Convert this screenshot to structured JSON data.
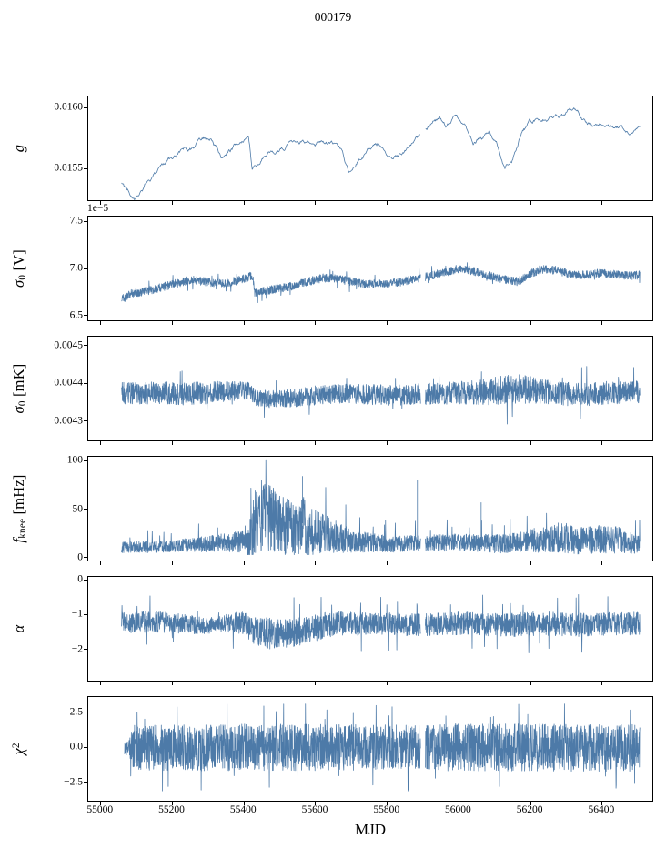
{
  "title": "000179",
  "xlabel": "MJD",
  "chart_data": {
    "type": "line",
    "color": "#4d7aa8",
    "background": "#ffffff",
    "xlim": [
      54965,
      56540
    ],
    "x_start": 55058,
    "x_end": 56505,
    "xticks": [
      55000,
      55200,
      55400,
      55600,
      55800,
      56000,
      56200,
      56400
    ],
    "xtick_labels": [
      "55000",
      "55200",
      "55400",
      "55600",
      "55800",
      "56000",
      "56200",
      "56400"
    ],
    "gaps": [
      [
        55893,
        55906
      ]
    ],
    "panels": [
      {
        "id": "g",
        "ylabel_parts": [
          {
            "t": "g",
            "i": 1
          }
        ],
        "ylim": [
          0.01524,
          0.01609
        ],
        "yticks": [
          {
            "v": 0.0155,
            "label": "0.0155"
          },
          {
            "v": 0.016,
            "label": "0.0160"
          }
        ],
        "style": "walk",
        "seed": 1,
        "n": 850,
        "base": [
          [
            55058,
            0.01538
          ],
          [
            55072,
            0.01531
          ],
          [
            55095,
            0.01527
          ],
          [
            55130,
            0.01541
          ],
          [
            55170,
            0.01549
          ],
          [
            55210,
            0.01556
          ],
          [
            55250,
            0.01563
          ],
          [
            55285,
            0.01571
          ],
          [
            55310,
            0.01572
          ],
          [
            55340,
            0.01559
          ],
          [
            55360,
            0.01564
          ],
          [
            55390,
            0.01571
          ],
          [
            55413,
            0.01573
          ],
          [
            55423,
            0.01549
          ],
          [
            55450,
            0.01557
          ],
          [
            55480,
            0.0156
          ],
          [
            55520,
            0.01568
          ],
          [
            55560,
            0.01574
          ],
          [
            55600,
            0.01573
          ],
          [
            55640,
            0.01575
          ],
          [
            55672,
            0.01569
          ],
          [
            55692,
            0.01551
          ],
          [
            55715,
            0.0156
          ],
          [
            55745,
            0.01568
          ],
          [
            55775,
            0.0157
          ],
          [
            55810,
            0.01564
          ],
          [
            55845,
            0.01569
          ],
          [
            55880,
            0.01573
          ],
          [
            55915,
            0.01582
          ],
          [
            55945,
            0.0159
          ],
          [
            55965,
            0.01584
          ],
          [
            55990,
            0.01589
          ],
          [
            56015,
            0.01581
          ],
          [
            56040,
            0.01571
          ],
          [
            56065,
            0.01577
          ],
          [
            56085,
            0.01584
          ],
          [
            56105,
            0.01573
          ],
          [
            56128,
            0.01556
          ],
          [
            56148,
            0.01561
          ],
          [
            56175,
            0.01585
          ],
          [
            56205,
            0.01589
          ],
          [
            56240,
            0.01592
          ],
          [
            56270,
            0.01596
          ],
          [
            56300,
            0.01601
          ],
          [
            56330,
            0.01599
          ],
          [
            56355,
            0.01591
          ],
          [
            56385,
            0.01585
          ],
          [
            56420,
            0.01583
          ],
          [
            56460,
            0.01582
          ],
          [
            56505,
            0.01583
          ]
        ],
        "amp": [
          [
            55058,
            1.3e-05
          ],
          [
            56505,
            1.3e-05
          ]
        ]
      },
      {
        "id": "sigma0-v",
        "ylabel_parts": [
          {
            "t": "σ",
            "i": 1
          },
          {
            "t": "0",
            "sub": 1
          },
          {
            "t": " [V]"
          }
        ],
        "offset_text": "1e−5",
        "ylim": [
          6.45,
          7.55
        ],
        "yticks": [
          {
            "v": 6.5,
            "label": "6.5"
          },
          {
            "v": 7.0,
            "label": "7.0"
          },
          {
            "v": 7.5,
            "label": "7.5"
          }
        ],
        "style": "band",
        "seed": 2,
        "n": 2300,
        "base": [
          [
            55058,
            6.67
          ],
          [
            55085,
            6.73
          ],
          [
            55140,
            6.77
          ],
          [
            55200,
            6.83
          ],
          [
            55250,
            6.88
          ],
          [
            55290,
            6.86
          ],
          [
            55330,
            6.84
          ],
          [
            55370,
            6.86
          ],
          [
            55410,
            6.9
          ],
          [
            55424,
            6.93
          ],
          [
            55430,
            6.74
          ],
          [
            55470,
            6.77
          ],
          [
            55520,
            6.8
          ],
          [
            55570,
            6.85
          ],
          [
            55620,
            6.9
          ],
          [
            55660,
            6.89
          ],
          [
            55700,
            6.86
          ],
          [
            55740,
            6.83
          ],
          [
            55790,
            6.84
          ],
          [
            55840,
            6.86
          ],
          [
            55890,
            6.89
          ],
          [
            55940,
            6.94
          ],
          [
            55990,
            6.99
          ],
          [
            56030,
            6.98
          ],
          [
            56070,
            6.94
          ],
          [
            56110,
            6.9
          ],
          [
            56140,
            6.87
          ],
          [
            56165,
            6.86
          ],
          [
            56195,
            6.94
          ],
          [
            56230,
            6.99
          ],
          [
            56270,
            6.98
          ],
          [
            56310,
            6.94
          ],
          [
            56350,
            6.93
          ],
          [
            56390,
            6.95
          ],
          [
            56430,
            6.94
          ],
          [
            56470,
            6.92
          ],
          [
            56505,
            6.93
          ]
        ],
        "amp": [
          [
            55058,
            0.045
          ],
          [
            56505,
            0.045
          ]
        ],
        "spikes": {
          "prob": 0.012,
          "mult": 1.9,
          "dir": "both"
        }
      },
      {
        "id": "sigma0-mk",
        "ylabel_parts": [
          {
            "t": "σ",
            "i": 1
          },
          {
            "t": "0",
            "sub": 1
          },
          {
            "t": " [mK]"
          }
        ],
        "ylim": [
          0.004249,
          0.004523
        ],
        "yticks": [
          {
            "v": 0.0043,
            "label": "0.0043"
          },
          {
            "v": 0.0044,
            "label": "0.0044"
          },
          {
            "v": 0.0045,
            "label": "0.0045"
          }
        ],
        "style": "band",
        "seed": 3,
        "n": 2400,
        "base": [
          [
            55058,
            0.004372
          ],
          [
            55150,
            0.004376
          ],
          [
            55240,
            0.004372
          ],
          [
            55330,
            0.004377
          ],
          [
            55415,
            0.004381
          ],
          [
            55435,
            0.004361
          ],
          [
            55490,
            0.004357
          ],
          [
            55550,
            0.004363
          ],
          [
            55610,
            0.004369
          ],
          [
            55690,
            0.004372
          ],
          [
            55780,
            0.004369
          ],
          [
            55870,
            0.004371
          ],
          [
            55960,
            0.004374
          ],
          [
            56050,
            0.004377
          ],
          [
            56120,
            0.004381
          ],
          [
            56160,
            0.004386
          ],
          [
            56220,
            0.00438
          ],
          [
            56290,
            0.004372
          ],
          [
            56360,
            0.004372
          ],
          [
            56430,
            0.004375
          ],
          [
            56505,
            0.004378
          ]
        ],
        "amp": [
          [
            55058,
            3e-05
          ],
          [
            55300,
            3e-05
          ],
          [
            55430,
            2.2e-05
          ],
          [
            55560,
            2.5e-05
          ],
          [
            55800,
            2.8e-05
          ],
          [
            56000,
            3e-05
          ],
          [
            56140,
            4e-05
          ],
          [
            56260,
            3.2e-05
          ],
          [
            56505,
            3e-05
          ]
        ],
        "spikes": {
          "prob": 0.01,
          "mult": 1.8,
          "dir": "both"
        }
      },
      {
        "id": "fknee",
        "ylabel_parts": [
          {
            "t": "f",
            "i": 1
          },
          {
            "t": "knee",
            "sub": 1
          },
          {
            "t": " [mHz]"
          }
        ],
        "ylim": [
          -3,
          104
        ],
        "yticks": [
          {
            "v": 0,
            "label": "0"
          },
          {
            "v": 50,
            "label": "50"
          },
          {
            "v": 100,
            "label": "100"
          }
        ],
        "style": "band",
        "seed": 4,
        "n": 2400,
        "base": [
          [
            55058,
            11
          ],
          [
            55150,
            11
          ],
          [
            55250,
            13
          ],
          [
            55330,
            15
          ],
          [
            55390,
            17
          ],
          [
            55418,
            22
          ],
          [
            55432,
            42
          ],
          [
            55460,
            44
          ],
          [
            55500,
            34
          ],
          [
            55540,
            30
          ],
          [
            55565,
            36
          ],
          [
            55590,
            26
          ],
          [
            55630,
            24
          ],
          [
            55670,
            20
          ],
          [
            55710,
            17
          ],
          [
            55760,
            15
          ],
          [
            55820,
            14
          ],
          [
            55880,
            15
          ],
          [
            55940,
            15
          ],
          [
            56000,
            16
          ],
          [
            56060,
            15
          ],
          [
            56120,
            14
          ],
          [
            56180,
            17
          ],
          [
            56240,
            19
          ],
          [
            56290,
            21
          ],
          [
            56340,
            17
          ],
          [
            56390,
            19
          ],
          [
            56440,
            19
          ],
          [
            56505,
            13
          ]
        ],
        "amp": [
          [
            55058,
            6
          ],
          [
            55200,
            6
          ],
          [
            55330,
            9
          ],
          [
            55400,
            12
          ],
          [
            55432,
            38
          ],
          [
            55470,
            36
          ],
          [
            55530,
            28
          ],
          [
            55570,
            30
          ],
          [
            55610,
            22
          ],
          [
            55660,
            16
          ],
          [
            55710,
            12
          ],
          [
            55780,
            9
          ],
          [
            55860,
            8
          ],
          [
            55950,
            9
          ],
          [
            56050,
            9
          ],
          [
            56150,
            10
          ],
          [
            56220,
            13
          ],
          [
            56290,
            16
          ],
          [
            56360,
            14
          ],
          [
            56430,
            15
          ],
          [
            56505,
            9
          ]
        ],
        "clamp": [
          3,
          101
        ],
        "spikes": {
          "prob": 0.012,
          "mult": 2.2,
          "dir": "up"
        },
        "point_spikes": [
          [
            55563,
            84
          ],
          [
            55884,
            80
          ],
          [
            56062,
            57
          ]
        ]
      },
      {
        "id": "alpha",
        "ylabel_parts": [
          {
            "t": "α",
            "i": 1
          }
        ],
        "ylim": [
          -2.9,
          0.08
        ],
        "yticks": [
          {
            "v": 0,
            "label": "0"
          },
          {
            "v": -1,
            "label": "−1"
          },
          {
            "v": -2,
            "label": "−2"
          }
        ],
        "style": "band",
        "seed": 5,
        "n": 2400,
        "base": [
          [
            55058,
            -1.22
          ],
          [
            55150,
            -1.2
          ],
          [
            55240,
            -1.28
          ],
          [
            55300,
            -1.32
          ],
          [
            55340,
            -1.25
          ],
          [
            55390,
            -1.22
          ],
          [
            55425,
            -1.45
          ],
          [
            55470,
            -1.55
          ],
          [
            55530,
            -1.52
          ],
          [
            55580,
            -1.45
          ],
          [
            55620,
            -1.32
          ],
          [
            55670,
            -1.25
          ],
          [
            55730,
            -1.28
          ],
          [
            55800,
            -1.26
          ],
          [
            55870,
            -1.3
          ],
          [
            55940,
            -1.27
          ],
          [
            56010,
            -1.25
          ],
          [
            56080,
            -1.28
          ],
          [
            56150,
            -1.3
          ],
          [
            56220,
            -1.26
          ],
          [
            56290,
            -1.28
          ],
          [
            56360,
            -1.3
          ],
          [
            56430,
            -1.27
          ],
          [
            56505,
            -1.26
          ]
        ],
        "amp": [
          [
            55058,
            0.33
          ],
          [
            55240,
            0.28
          ],
          [
            55330,
            0.22
          ],
          [
            55400,
            0.35
          ],
          [
            55470,
            0.45
          ],
          [
            55600,
            0.38
          ],
          [
            55700,
            0.33
          ],
          [
            56000,
            0.33
          ],
          [
            56200,
            0.35
          ],
          [
            56505,
            0.33
          ]
        ],
        "clamp": [
          -2.45,
          -0.3
        ],
        "spikes": {
          "prob": 0.015,
          "mult": 2.0,
          "dir": "both"
        }
      },
      {
        "id": "chi2",
        "ylabel_parts": [
          {
            "t": "χ",
            "i": 1
          },
          {
            "t": "2",
            "sup": 1
          }
        ],
        "ylim": [
          -3.8,
          3.6
        ],
        "yticks": [
          {
            "v": 2.5,
            "label": "2.5"
          },
          {
            "v": 0,
            "label": "0.0"
          },
          {
            "v": -2.5,
            "label": "−2.5"
          }
        ],
        "style": "band",
        "seed": 6,
        "n": 2600,
        "x_start": 55066,
        "base": [
          [
            55066,
            0
          ],
          [
            56505,
            0
          ]
        ],
        "amp": [
          [
            55066,
            0.5
          ],
          [
            55080,
            0.6
          ],
          [
            55090,
            1.6
          ],
          [
            55300,
            1.7
          ],
          [
            55900,
            1.6
          ],
          [
            56000,
            1.7
          ],
          [
            56505,
            1.7
          ]
        ],
        "clamp": [
          -3.1,
          3.1
        ],
        "spikes": {
          "prob": 0.02,
          "mult": 1.7,
          "dir": "both"
        }
      }
    ]
  }
}
